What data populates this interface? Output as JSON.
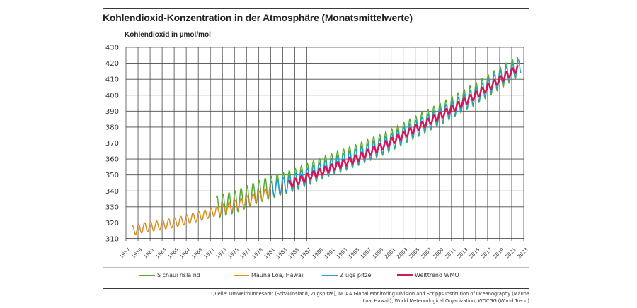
{
  "chart_data": {
    "type": "line",
    "title": "Kohlendioxid-Konzentration in der Atmosphäre (Monatsmittelwerte)",
    "ylabel": "Kohlendioxid in µmol/mol",
    "xlabel": "",
    "xlim": [
      1957,
      2023
    ],
    "ylim": [
      310,
      430
    ],
    "yticks": [
      310,
      320,
      330,
      340,
      350,
      360,
      370,
      380,
      390,
      400,
      410,
      420,
      430
    ],
    "xticks": [
      1957,
      1959,
      1961,
      1963,
      1965,
      1967,
      1969,
      1971,
      1973,
      1975,
      1977,
      1979,
      1981,
      1983,
      1985,
      1987,
      1989,
      1991,
      1993,
      1995,
      1997,
      1999,
      2001,
      2003,
      2005,
      2007,
      2009,
      2011,
      2013,
      2015,
      2017,
      2019,
      2021,
      2023
    ],
    "grid": true,
    "legend_position": "bottom",
    "series": [
      {
        "name": "S chaui nsla nd",
        "key": "schauinsland",
        "color": "#5aaa32",
        "seasonal_amplitude": 7,
        "years": [
          1972,
          1975,
          1980,
          1985,
          1990,
          1995,
          2000,
          2005,
          2010,
          2015,
          2020,
          2022
        ],
        "annual_mean": [
          330,
          333,
          341,
          347,
          355,
          362,
          370,
          380,
          390,
          401,
          413,
          418
        ]
      },
      {
        "name": "Mauna Loa, Hawaii",
        "key": "mauna_loa",
        "color": "#d99020",
        "seasonal_amplitude": 3,
        "years": [
          1958,
          1960,
          1965,
          1970,
          1975,
          1980,
          1981
        ],
        "annual_mean": [
          315,
          317,
          320,
          325,
          331,
          338,
          340
        ]
      },
      {
        "name": "Z ugs pitze",
        "key": "zugspitze",
        "color": "#1fa0d0",
        "seasonal_amplitude": 5,
        "years": [
          1981,
          1985,
          1990,
          1995,
          2000,
          2005,
          2010,
          2015,
          2020,
          2022.5
        ],
        "annual_mean": [
          341,
          346,
          354,
          361,
          369,
          379,
          389,
          400,
          413,
          418
        ]
      },
      {
        "name": "Welttrend WMO",
        "key": "wmo",
        "color": "#d0185a",
        "seasonal_amplitude": 2.2,
        "years": [
          1984,
          1990,
          1995,
          2000,
          2005,
          2010,
          2015,
          2020,
          2022
        ],
        "annual_mean": [
          344,
          353,
          360,
          369,
          379,
          389,
          400,
          412,
          417
        ]
      }
    ]
  },
  "legend": [
    {
      "label": "S chaui nsla nd",
      "color": "#5aaa32"
    },
    {
      "label": "Mauna Loa, Hawaii",
      "color": "#d99020"
    },
    {
      "label": "Z ugs pitze",
      "color": "#1fa0d0"
    },
    {
      "label": "Welttrend WMO",
      "color": "#d0185a"
    }
  ],
  "source": "Quelle: Umweltbundesamt (Schauinsland, Zugspitze), NOAA Global Monitoring Division and Scripps Institution of Oceanography (Mauna Loa, Hawaii), World Meteorological Organization, WDCGG (World Trend)"
}
